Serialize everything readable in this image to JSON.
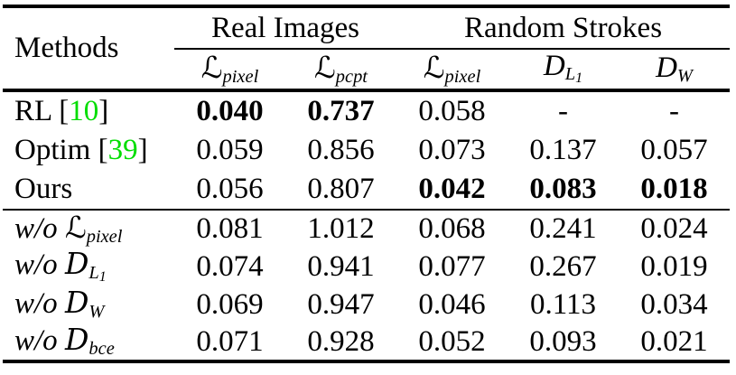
{
  "table": {
    "methods_header": "Methods",
    "citation_color": "#00dd00",
    "groups": [
      {
        "label": "Real Images",
        "span": 2
      },
      {
        "label": "Random Strokes",
        "span": 3
      }
    ],
    "columns": [
      {
        "letter": "L",
        "cal": true,
        "sub": "pixel"
      },
      {
        "letter": "L",
        "cal": true,
        "sub": "pcpt"
      },
      {
        "letter": "L",
        "cal": true,
        "sub": "pixel"
      },
      {
        "letter": "D",
        "cal": false,
        "sub": "L",
        "subsub": "1"
      },
      {
        "letter": "D",
        "cal": false,
        "sub": "W"
      }
    ],
    "sections": [
      {
        "name": "comparison",
        "rows": [
          {
            "method": {
              "label": "RL",
              "cite": "10"
            },
            "values": [
              {
                "v": "0.040",
                "bold": true
              },
              {
                "v": "0.737",
                "bold": true
              },
              {
                "v": "0.058",
                "bold": false
              },
              {
                "v": "-",
                "bold": false
              },
              {
                "v": "-",
                "bold": false
              }
            ]
          },
          {
            "method": {
              "label": "Optim",
              "cite": "39"
            },
            "values": [
              {
                "v": "0.059",
                "bold": false
              },
              {
                "v": "0.856",
                "bold": false
              },
              {
                "v": "0.073",
                "bold": false
              },
              {
                "v": "0.137",
                "bold": false
              },
              {
                "v": "0.057",
                "bold": false
              }
            ]
          },
          {
            "method": {
              "label": "Ours"
            },
            "values": [
              {
                "v": "0.056",
                "bold": false
              },
              {
                "v": "0.807",
                "bold": false
              },
              {
                "v": "0.042",
                "bold": true
              },
              {
                "v": "0.083",
                "bold": true
              },
              {
                "v": "0.018",
                "bold": true
              }
            ]
          }
        ]
      },
      {
        "name": "ablation",
        "rows": [
          {
            "method": {
              "prefix": "w/o",
              "math": {
                "letter": "L",
                "cal": true,
                "sub": "pixel"
              }
            },
            "values": [
              {
                "v": "0.081",
                "bold": false
              },
              {
                "v": "1.012",
                "bold": false
              },
              {
                "v": "0.068",
                "bold": false
              },
              {
                "v": "0.241",
                "bold": false
              },
              {
                "v": "0.024",
                "bold": false
              }
            ]
          },
          {
            "method": {
              "prefix": "w/o",
              "math": {
                "letter": "D",
                "cal": true,
                "sub": "L",
                "subsub": "1"
              }
            },
            "values": [
              {
                "v": "0.074",
                "bold": false
              },
              {
                "v": "0.941",
                "bold": false
              },
              {
                "v": "0.077",
                "bold": false
              },
              {
                "v": "0.267",
                "bold": false
              },
              {
                "v": "0.019",
                "bold": false
              }
            ]
          },
          {
            "method": {
              "prefix": "w/o",
              "math": {
                "letter": "D",
                "cal": true,
                "sub": "W"
              }
            },
            "values": [
              {
                "v": "0.069",
                "bold": false
              },
              {
                "v": "0.947",
                "bold": false
              },
              {
                "v": "0.046",
                "bold": false
              },
              {
                "v": "0.113",
                "bold": false
              },
              {
                "v": "0.034",
                "bold": false
              }
            ]
          },
          {
            "method": {
              "prefix": "w/o",
              "math": {
                "letter": "D",
                "cal": true,
                "sub": "bce"
              }
            },
            "values": [
              {
                "v": "0.071",
                "bold": false
              },
              {
                "v": "0.928",
                "bold": false
              },
              {
                "v": "0.052",
                "bold": false
              },
              {
                "v": "0.093",
                "bold": false
              },
              {
                "v": "0.021",
                "bold": false
              }
            ]
          }
        ]
      }
    ]
  }
}
